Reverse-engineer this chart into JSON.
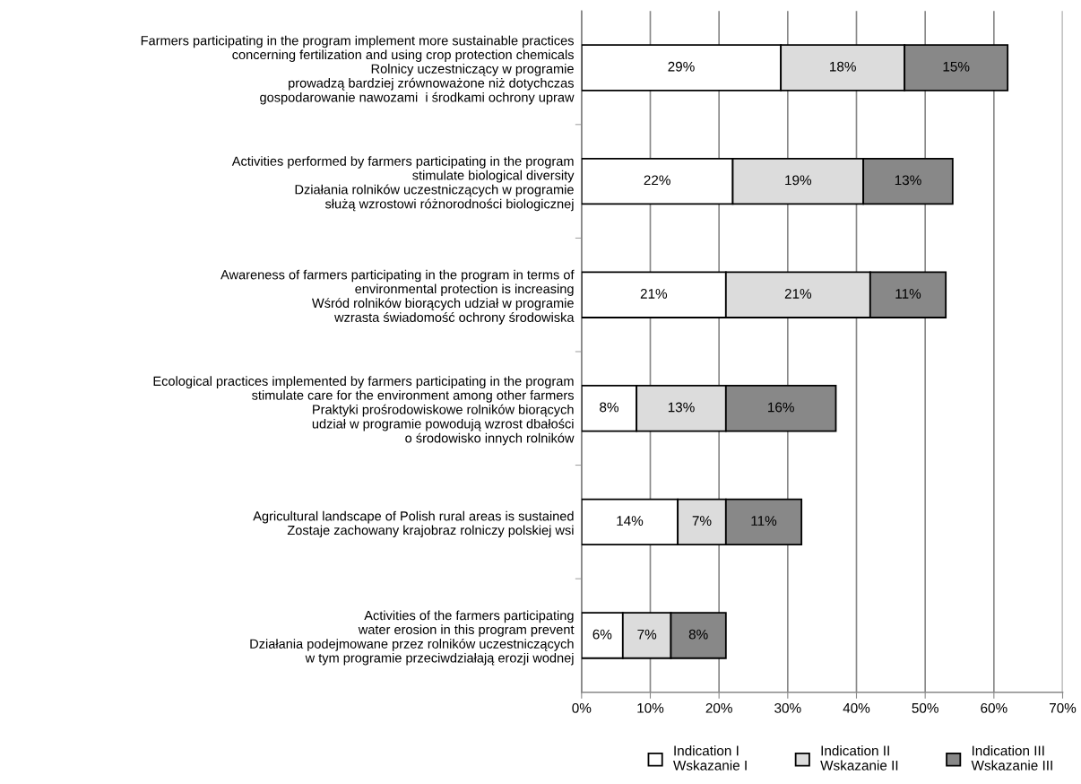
{
  "chart_data": {
    "type": "bar",
    "orientation": "horizontal",
    "stacked": true,
    "categories": [
      "Farmers participating in the program implement more sustainable practices\nconcerning fertilization and using crop protection chemicals\nRolnicy uczestniczący w programie\nprowadzą bardziej zrównoważone niż dotychczas\ngospodarowanie nawozami  i środkami ochrony upraw",
      "Activities performed by farmers participating in the program\nstimulate biological diversity\nDziałania rolników uczestniczących w programie\nsłużą wzrostowi różnorodności biologicznej",
      "Awareness of farmers participating in the program in terms of\nenvironmental protection is increasing\nWśród rolników biorących udział w programie\nwzrasta świadomość ochrony środowiska",
      "Ecological practices implemented by farmers participating in the program\nstimulate care for the environment among other farmers\nPraktyki prośrodowiskowe rolników biorących\nudział w programie powodują wzrost dbałości\no środowisko innych rolników",
      "Agricultural landscape of Polish rural areas is sustained\nZostaje zachowany krajobraz rolniczy polskiej wsi",
      "Activities of the farmers participating\nwater erosion in this program prevent\nDziałania podejmowane przez rolników uczestniczących\nw tym programie przeciwdziałają erozji wodnej"
    ],
    "series": [
      {
        "name": "Indication I\nWskazanie I",
        "color": "#ffffff",
        "values": [
          29,
          22,
          21,
          8,
          14,
          6
        ],
        "value_labels": [
          "29%",
          "22%",
          "21%",
          "8%",
          "14%",
          "6%"
        ]
      },
      {
        "name": "Indication II\nWskazanie II",
        "color": "#dcdcdc",
        "values": [
          18,
          19,
          21,
          13,
          7,
          7
        ],
        "value_labels": [
          "18%",
          "19%",
          "21%",
          "13%",
          "7%",
          "7%"
        ]
      },
      {
        "name": "Indication III\nWskazanie III",
        "color": "#888888",
        "values": [
          15,
          13,
          11,
          16,
          11,
          8
        ],
        "value_labels": [
          "15%",
          "13%",
          "11%",
          "16%",
          "11%",
          "8%"
        ]
      }
    ],
    "xlim": [
      0,
      70
    ],
    "xticks": [
      {
        "value": 0,
        "label": "0%"
      },
      {
        "value": 10,
        "label": "10%"
      },
      {
        "value": 20,
        "label": "20%"
      },
      {
        "value": 30,
        "label": "30%"
      },
      {
        "value": 40,
        "label": "40%"
      },
      {
        "value": 50,
        "label": "50%"
      },
      {
        "value": 60,
        "label": "60%"
      },
      {
        "value": 70,
        "label": "70%"
      }
    ],
    "grid": "x",
    "legend": "bottom"
  }
}
